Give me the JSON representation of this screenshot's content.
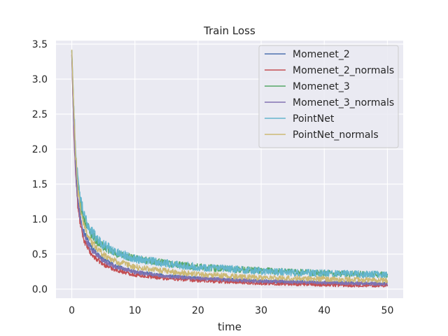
{
  "chart_data": {
    "type": "line",
    "title": "Train Loss",
    "xlabel": "time",
    "ylabel": "",
    "xlim": [
      -2.5,
      52.5
    ],
    "ylim": [
      -0.13,
      3.55
    ],
    "xticks": [
      0,
      10,
      20,
      30,
      40,
      50
    ],
    "yticks": [
      0.0,
      0.5,
      1.0,
      1.5,
      2.0,
      2.5,
      3.0,
      3.5
    ],
    "grid": true,
    "legend_position": "top-right",
    "noise_note": "Each series is a noisy per-iteration loss curve; values below are the underlying trend read at sample points, with the visible jitter amplitude.",
    "x_samples": [
      0,
      0.3,
      0.6,
      1,
      1.5,
      2,
      3,
      4,
      5,
      7,
      10,
      15,
      20,
      25,
      30,
      35,
      40,
      45,
      50
    ],
    "series": [
      {
        "name": "Momenet_2",
        "color": "#4c72b0",
        "jitter": 0.05,
        "values": [
          3.4,
          2.4,
          1.75,
          1.25,
          0.98,
          0.8,
          0.6,
          0.5,
          0.42,
          0.32,
          0.24,
          0.18,
          0.15,
          0.13,
          0.11,
          0.1,
          0.09,
          0.08,
          0.07
        ]
      },
      {
        "name": "Momenet_2_normals",
        "color": "#c44e52",
        "jitter": 0.05,
        "values": [
          3.35,
          2.3,
          1.65,
          1.12,
          0.85,
          0.68,
          0.5,
          0.42,
          0.35,
          0.27,
          0.2,
          0.15,
          0.12,
          0.1,
          0.08,
          0.07,
          0.06,
          0.05,
          0.05
        ]
      },
      {
        "name": "Momenet_3",
        "color": "#55a868",
        "jitter": 0.08,
        "values": [
          3.4,
          2.55,
          1.9,
          1.42,
          1.15,
          0.98,
          0.8,
          0.68,
          0.6,
          0.5,
          0.43,
          0.36,
          0.31,
          0.28,
          0.26,
          0.24,
          0.22,
          0.21,
          0.2
        ]
      },
      {
        "name": "Momenet_3_normals",
        "color": "#8172b2",
        "jitter": 0.05,
        "values": [
          3.35,
          2.35,
          1.7,
          1.18,
          0.92,
          0.75,
          0.57,
          0.48,
          0.4,
          0.31,
          0.24,
          0.18,
          0.15,
          0.13,
          0.11,
          0.1,
          0.09,
          0.08,
          0.07
        ]
      },
      {
        "name": "PointNet",
        "color": "#64b5cd",
        "jitter": 0.09,
        "values": [
          3.42,
          2.65,
          2.0,
          1.5,
          1.22,
          1.02,
          0.83,
          0.72,
          0.63,
          0.52,
          0.43,
          0.36,
          0.31,
          0.28,
          0.25,
          0.23,
          0.22,
          0.21,
          0.2
        ]
      },
      {
        "name": "PointNet_normals",
        "color": "#ccb974",
        "jitter": 0.07,
        "values": [
          3.42,
          2.6,
          1.92,
          1.38,
          1.08,
          0.88,
          0.68,
          0.57,
          0.49,
          0.39,
          0.31,
          0.25,
          0.21,
          0.18,
          0.16,
          0.15,
          0.14,
          0.13,
          0.12
        ]
      }
    ]
  },
  "colors": {
    "plot_background": "#eaeaf2",
    "grid": "#ffffff",
    "legend_background": "#eaeaf2",
    "legend_border": "#cccccc"
  }
}
